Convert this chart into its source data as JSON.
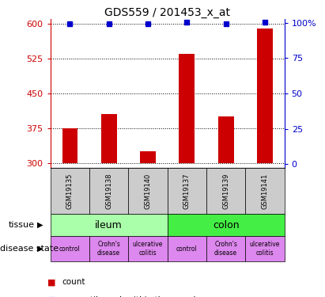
{
  "title": "GDS559 / 201453_x_at",
  "samples": [
    "GSM19135",
    "GSM19138",
    "GSM19140",
    "GSM19137",
    "GSM19139",
    "GSM19141"
  ],
  "counts": [
    375,
    405,
    325,
    535,
    400,
    590
  ],
  "percentiles": [
    97,
    97,
    97,
    98,
    97,
    98
  ],
  "ylim_left": [
    290,
    610
  ],
  "bar_bottom": 300,
  "ylim_right": [
    -2.5,
    102.5
  ],
  "yticks_left": [
    300,
    375,
    450,
    525,
    600
  ],
  "yticks_right": [
    0,
    25,
    50,
    75,
    100
  ],
  "ytick_labels_right": [
    "0",
    "25",
    "50",
    "75",
    "100%"
  ],
  "bar_color": "#cc0000",
  "dot_color": "#0000cc",
  "tissue_labels": [
    "ileum",
    "colon"
  ],
  "tissue_colors": [
    "#aaffaa",
    "#44ee44"
  ],
  "disease_color": "#dd88ee",
  "sample_box_color": "#cccccc",
  "left_tick_color": "#cc0000",
  "right_tick_color": "#0000cc",
  "grid_linestyle": ":",
  "grid_linewidth": 0.7,
  "grid_color": "#000000",
  "bar_width": 0.4,
  "dot_size": 5
}
